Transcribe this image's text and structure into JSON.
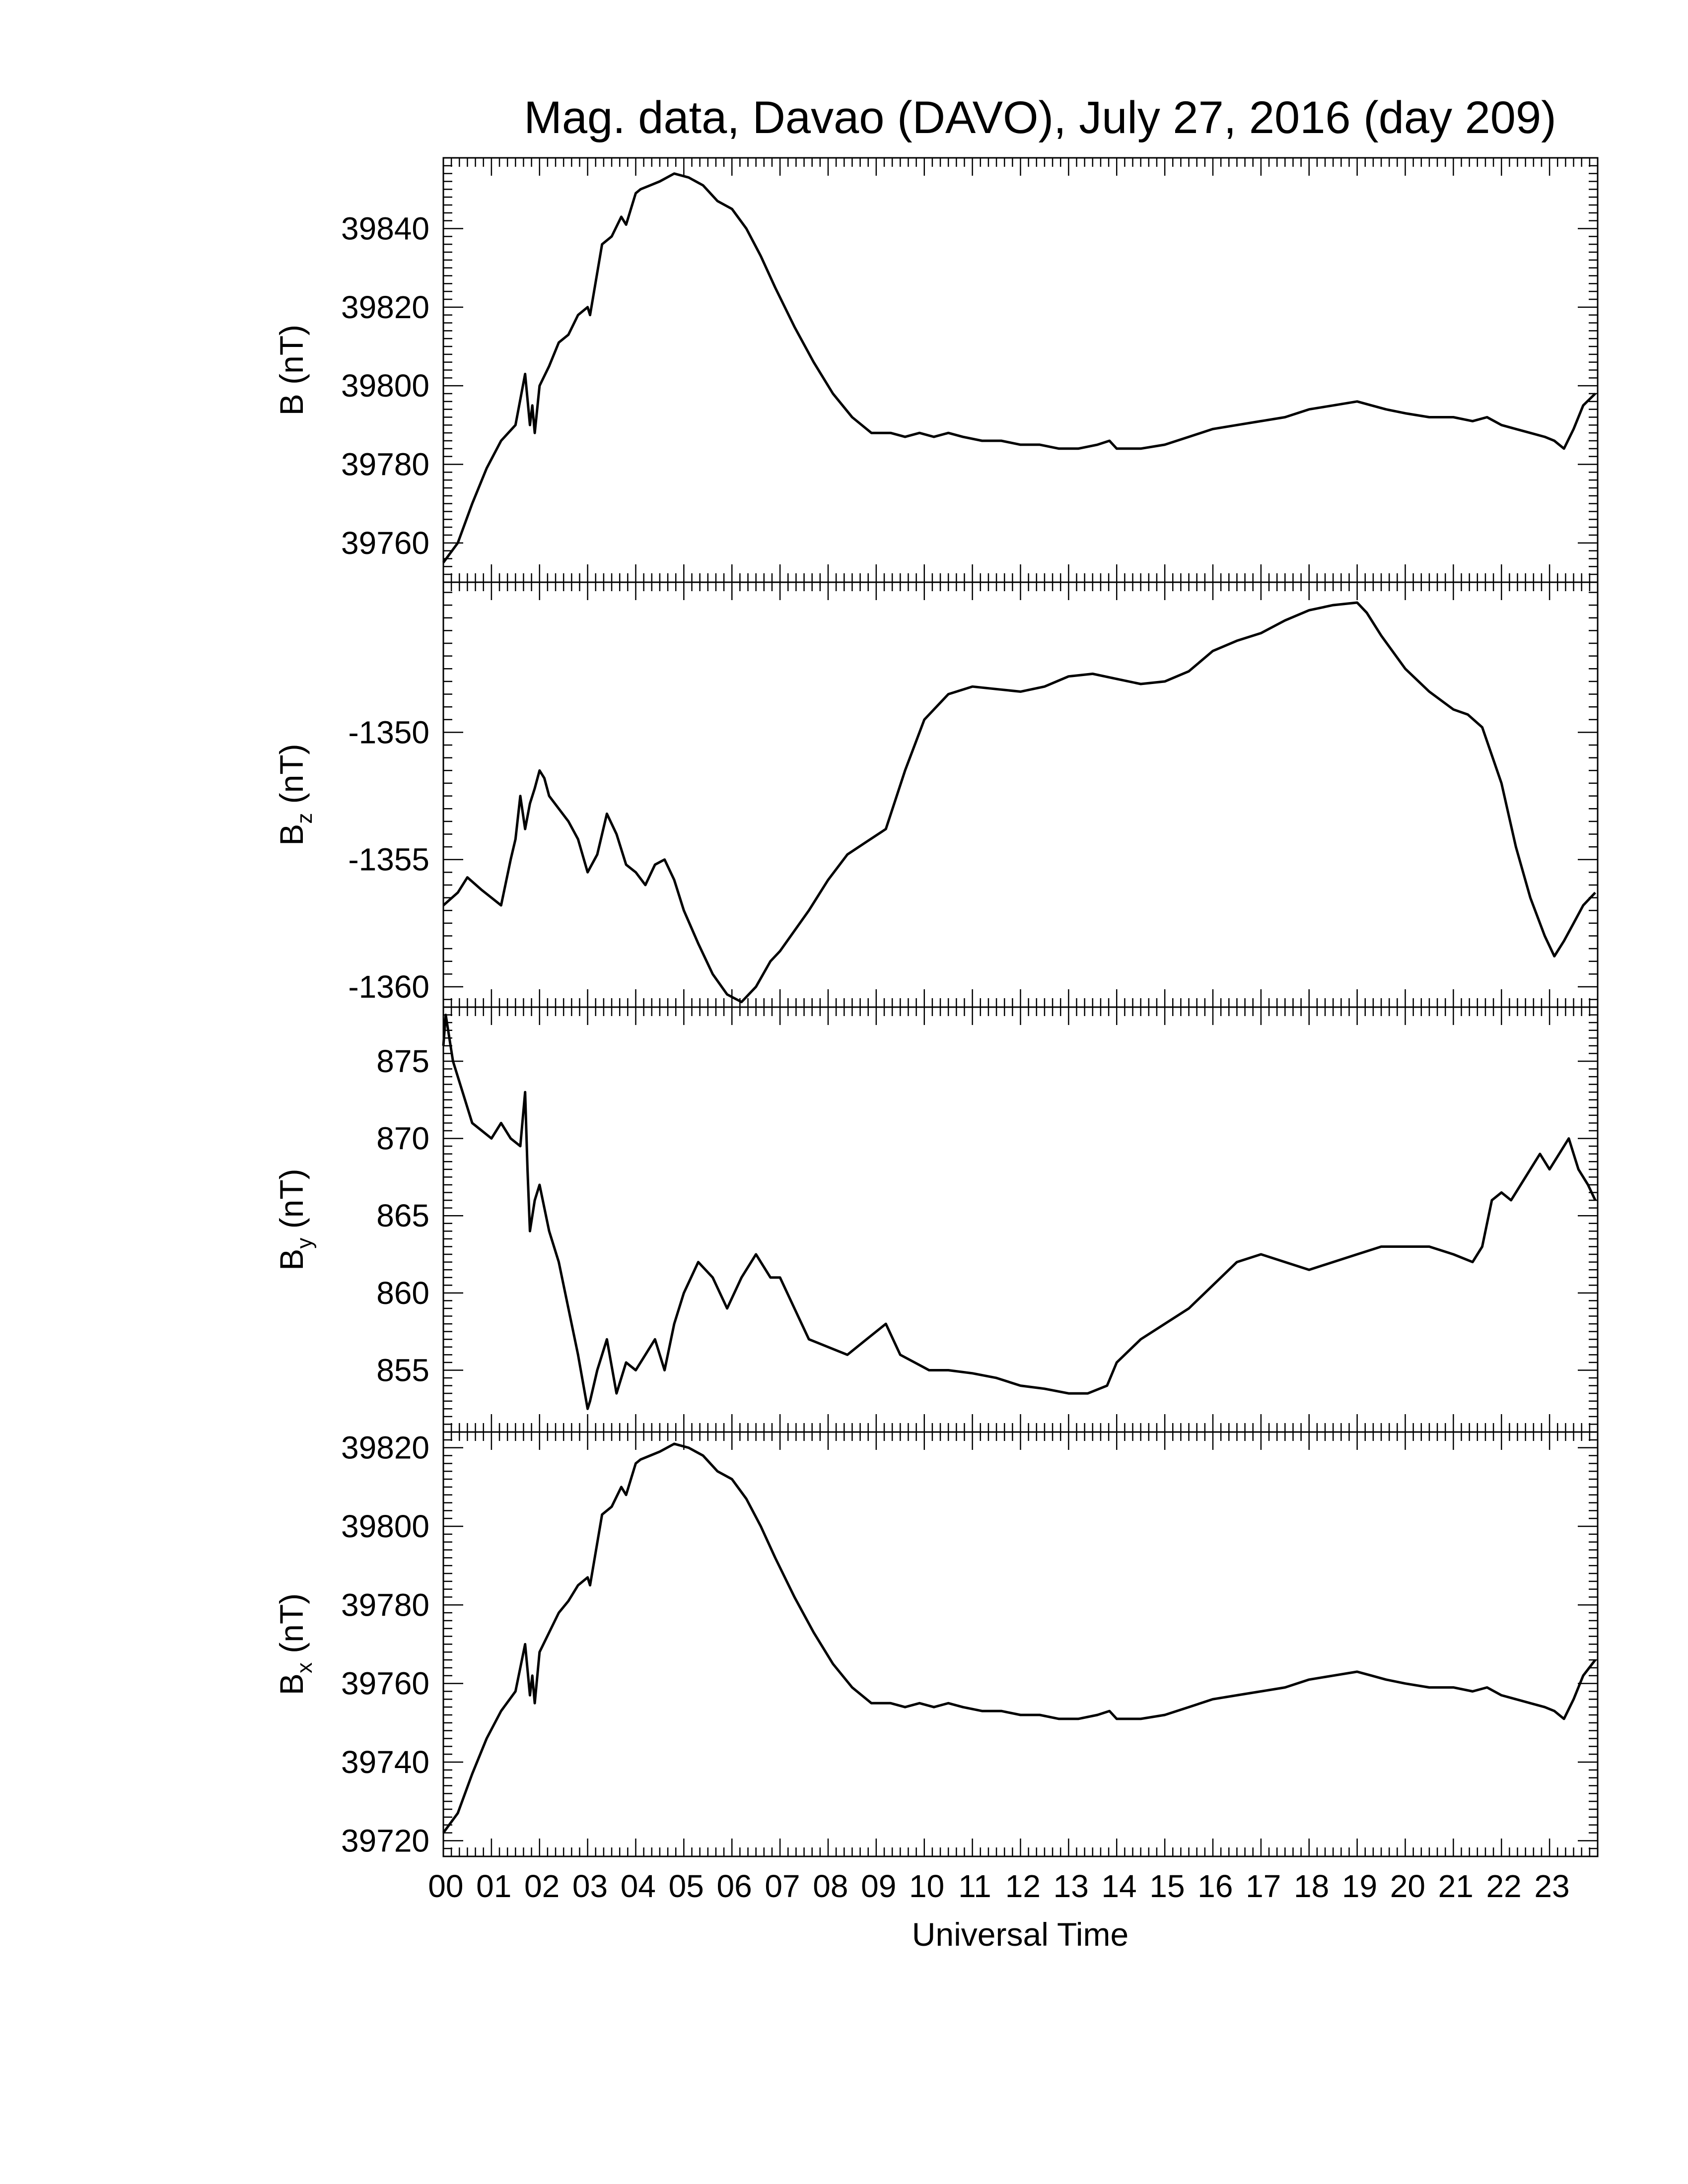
{
  "chart_data": [
    {
      "type": "line",
      "title": "Mag. data, Davao (DAVO), July 27, 2016 (day 209)",
      "ylabel": "B (nT)",
      "ylabel_main": "B",
      "ylabel_sub": "",
      "ylabel_unit": "(nT)",
      "ylim": [
        39750,
        39858
      ],
      "yticks": [
        39760,
        39780,
        39800,
        39820,
        39840
      ],
      "ytick_labels": [
        "39760",
        "39780",
        "39800",
        "39820",
        "39840"
      ],
      "series": [
        {
          "x": [
            0.0,
            0.3,
            0.6,
            0.9,
            1.2,
            1.5,
            1.7,
            1.8,
            1.85,
            1.9,
            2.0,
            2.2,
            2.4,
            2.6,
            2.8,
            3.0,
            3.05,
            3.3,
            3.5,
            3.7,
            3.8,
            4.0,
            4.1,
            4.3,
            4.5,
            4.8,
            5.1,
            5.4,
            5.7,
            6.0,
            6.3,
            6.6,
            6.9,
            7.3,
            7.7,
            8.1,
            8.5,
            8.9,
            9.3,
            9.6,
            9.9,
            10.2,
            10.5,
            10.8,
            11.2,
            11.6,
            12.0,
            12.4,
            12.8,
            13.2,
            13.6,
            13.85,
            14.0,
            14.5,
            15.0,
            15.5,
            16.0,
            16.5,
            17.0,
            17.5,
            18.0,
            18.5,
            19.0,
            19.3,
            19.6,
            20.0,
            20.5,
            21.0,
            21.4,
            21.7,
            22.0,
            22.3,
            22.6,
            22.9,
            23.1,
            23.3,
            23.5,
            23.7,
            23.95
          ],
          "values": [
            39755,
            39760,
            39770,
            39779,
            39786,
            39790,
            39803,
            39790,
            39795,
            39788,
            39800,
            39805,
            39811,
            39813,
            39818,
            39820,
            39818,
            39836,
            39838,
            39843,
            39841,
            39849,
            39850,
            39851,
            39852,
            39854,
            39853,
            39851,
            39847,
            39845,
            39840,
            39833,
            39825,
            39815,
            39806,
            39798,
            39792,
            39788,
            39788,
            39787,
            39788,
            39787,
            39788,
            39787,
            39786,
            39786,
            39785,
            39785,
            39784,
            39784,
            39785,
            39786,
            39784,
            39784,
            39785,
            39787,
            39789,
            39790,
            39791,
            39792,
            39794,
            39795,
            39796,
            39795,
            39794,
            39793,
            39792,
            39792,
            39791,
            39792,
            39790,
            39789,
            39788,
            39787,
            39786,
            39784,
            39789,
            39795,
            39798
          ]
        }
      ]
    },
    {
      "type": "line",
      "title": "",
      "ylabel": "Bz (nT)",
      "ylabel_main": "B",
      "ylabel_sub": "z",
      "ylabel_unit": "(nT)",
      "ylim": [
        -1360.8,
        -1344.1
      ],
      "yticks": [
        -1360,
        -1355,
        -1350
      ],
      "ytick_labels": [
        "-1360",
        "-1355",
        "-1350"
      ],
      "series": [
        {
          "x": [
            0.0,
            0.3,
            0.5,
            0.8,
            1.0,
            1.2,
            1.4,
            1.5,
            1.6,
            1.7,
            1.8,
            1.9,
            2.0,
            2.1,
            2.2,
            2.4,
            2.6,
            2.8,
            3.0,
            3.2,
            3.4,
            3.6,
            3.8,
            4.0,
            4.2,
            4.4,
            4.6,
            4.8,
            5.0,
            5.3,
            5.6,
            5.9,
            6.2,
            6.5,
            6.8,
            7.0,
            7.3,
            7.6,
            8.0,
            8.4,
            8.8,
            9.2,
            9.6,
            10.0,
            10.5,
            11.0,
            11.5,
            12.0,
            12.5,
            13.0,
            13.5,
            14.0,
            14.5,
            15.0,
            15.5,
            16.0,
            16.5,
            17.0,
            17.5,
            18.0,
            18.5,
            19.0,
            19.2,
            19.5,
            20.0,
            20.5,
            21.0,
            21.3,
            21.6,
            22.0,
            22.3,
            22.6,
            22.9,
            23.1,
            23.3,
            23.5,
            23.7,
            23.95
          ],
          "values": [
            -1356.8,
            -1356.3,
            -1355.7,
            -1356.2,
            -1356.5,
            -1356.8,
            -1355.0,
            -1354.2,
            -1352.5,
            -1353.8,
            -1352.8,
            -1352.2,
            -1351.5,
            -1351.8,
            -1352.5,
            -1353.0,
            -1353.5,
            -1354.2,
            -1355.5,
            -1354.8,
            -1353.2,
            -1354.0,
            -1355.2,
            -1355.5,
            -1356.0,
            -1355.2,
            -1355.0,
            -1355.8,
            -1357.0,
            -1358.3,
            -1359.5,
            -1360.3,
            -1360.6,
            -1360.0,
            -1359.0,
            -1358.6,
            -1357.8,
            -1357.0,
            -1355.8,
            -1354.8,
            -1354.3,
            -1353.8,
            -1351.5,
            -1349.5,
            -1348.5,
            -1348.2,
            -1348.3,
            -1348.4,
            -1348.2,
            -1347.8,
            -1347.7,
            -1347.9,
            -1348.1,
            -1348.0,
            -1347.6,
            -1346.8,
            -1346.4,
            -1346.1,
            -1345.6,
            -1345.2,
            -1345.0,
            -1344.9,
            -1345.3,
            -1346.2,
            -1347.5,
            -1348.4,
            -1349.1,
            -1349.3,
            -1349.8,
            -1352.0,
            -1354.5,
            -1356.5,
            -1358.0,
            -1358.8,
            -1358.2,
            -1357.5,
            -1356.8,
            -1356.3
          ]
        }
      ]
    },
    {
      "type": "line",
      "title": "",
      "ylabel": "By (nT)",
      "ylabel_main": "B",
      "ylabel_sub": "y",
      "ylabel_unit": "(nT)",
      "ylim": [
        851.0,
        878.5
      ],
      "yticks": [
        855,
        860,
        865,
        870,
        875
      ],
      "ytick_labels": [
        "855",
        "860",
        "865",
        "870",
        "875"
      ],
      "series": [
        {
          "x": [
            0.0,
            0.05,
            0.2,
            0.4,
            0.6,
            0.8,
            1.0,
            1.2,
            1.4,
            1.6,
            1.7,
            1.75,
            1.8,
            1.9,
            2.0,
            2.2,
            2.4,
            2.6,
            2.8,
            3.0,
            3.05,
            3.2,
            3.4,
            3.6,
            3.8,
            4.0,
            4.2,
            4.4,
            4.6,
            4.8,
            5.0,
            5.3,
            5.6,
            5.9,
            6.2,
            6.5,
            6.8,
            7.0,
            7.3,
            7.6,
            8.0,
            8.4,
            8.8,
            9.2,
            9.5,
            9.8,
            10.1,
            10.5,
            11.0,
            11.5,
            12.0,
            12.5,
            13.0,
            13.4,
            13.8,
            14.0,
            14.5,
            15.0,
            15.5,
            16.0,
            16.5,
            17.0,
            17.5,
            18.0,
            18.5,
            19.0,
            19.5,
            20.0,
            20.5,
            21.0,
            21.4,
            21.6,
            21.8,
            22.0,
            22.2,
            22.4,
            22.6,
            22.8,
            23.0,
            23.2,
            23.4,
            23.6,
            23.8,
            23.95
          ],
          "values": [
            876.0,
            878.0,
            875.0,
            873.0,
            871.0,
            870.5,
            870.0,
            871.0,
            870.0,
            869.5,
            873.0,
            868.0,
            864.0,
            866.0,
            867.0,
            864.0,
            862.0,
            859.0,
            856.0,
            852.5,
            853.0,
            855.0,
            857.0,
            853.5,
            855.5,
            855.0,
            856.0,
            857.0,
            855.0,
            858.0,
            860.0,
            862.0,
            861.0,
            859.0,
            861.0,
            862.5,
            861.0,
            861.0,
            859.0,
            857.0,
            856.5,
            856.0,
            857.0,
            858.0,
            856.0,
            855.5,
            855.0,
            855.0,
            854.8,
            854.5,
            854.0,
            853.8,
            853.5,
            853.5,
            854.0,
            855.5,
            857.0,
            858.0,
            859.0,
            860.5,
            862.0,
            862.5,
            862.0,
            861.5,
            862.0,
            862.5,
            863.0,
            863.0,
            863.0,
            862.5,
            862.0,
            863.0,
            866.0,
            866.5,
            866.0,
            867.0,
            868.0,
            869.0,
            868.0,
            869.0,
            870.0,
            868.0,
            867.0,
            866.0
          ]
        }
      ]
    },
    {
      "type": "line",
      "title": "",
      "ylabel": "Bx (nT)",
      "ylabel_main": "B",
      "ylabel_sub": "x",
      "ylabel_unit": "(nT)",
      "xlabel": "Universal Time",
      "ylim": [
        39716,
        39824
      ],
      "yticks": [
        39720,
        39740,
        39760,
        39780,
        39800,
        39820
      ],
      "ytick_labels": [
        "39720",
        "39740",
        "39760",
        "39780",
        "39800",
        "39820"
      ],
      "series": [
        {
          "x": [
            0.0,
            0.3,
            0.6,
            0.9,
            1.2,
            1.5,
            1.7,
            1.8,
            1.85,
            1.9,
            2.0,
            2.2,
            2.4,
            2.6,
            2.8,
            3.0,
            3.05,
            3.3,
            3.5,
            3.7,
            3.8,
            4.0,
            4.1,
            4.3,
            4.5,
            4.8,
            5.1,
            5.4,
            5.7,
            6.0,
            6.3,
            6.6,
            6.9,
            7.3,
            7.7,
            8.1,
            8.5,
            8.9,
            9.3,
            9.6,
            9.9,
            10.2,
            10.5,
            10.8,
            11.2,
            11.6,
            12.0,
            12.4,
            12.8,
            13.2,
            13.6,
            13.85,
            14.0,
            14.5,
            15.0,
            15.5,
            16.0,
            16.5,
            17.0,
            17.5,
            18.0,
            18.5,
            19.0,
            19.3,
            19.6,
            20.0,
            20.5,
            21.0,
            21.4,
            21.7,
            22.0,
            22.3,
            22.6,
            22.9,
            23.1,
            23.3,
            23.5,
            23.7,
            23.95
          ],
          "values": [
            39722,
            39727,
            39737,
            39746,
            39753,
            39758,
            39770,
            39757,
            39762,
            39755,
            39768,
            39773,
            39778,
            39781,
            39785,
            39787,
            39785,
            39803,
            39805,
            39810,
            39808,
            39816,
            39817,
            39818,
            39819,
            39821,
            39820,
            39818,
            39814,
            39812,
            39807,
            39800,
            39792,
            39782,
            39773,
            39765,
            39759,
            39755,
            39755,
            39754,
            39755,
            39754,
            39755,
            39754,
            39753,
            39753,
            39752,
            39752,
            39751,
            39751,
            39752,
            39753,
            39751,
            39751,
            39752,
            39754,
            39756,
            39757,
            39758,
            39759,
            39761,
            39762,
            39763,
            39762,
            39761,
            39760,
            39759,
            39759,
            39758,
            39759,
            39757,
            39756,
            39755,
            39754,
            39753,
            39751,
            39756,
            39762,
            39766
          ]
        }
      ]
    }
  ],
  "xaxis": {
    "range": [
      0,
      24
    ],
    "tick_labels": [
      "00",
      "01",
      "02",
      "03",
      "04",
      "05",
      "06",
      "07",
      "08",
      "09",
      "10",
      "11",
      "12",
      "13",
      "14",
      "15",
      "16",
      "17",
      "18",
      "19",
      "20",
      "21",
      "22",
      "23"
    ]
  }
}
